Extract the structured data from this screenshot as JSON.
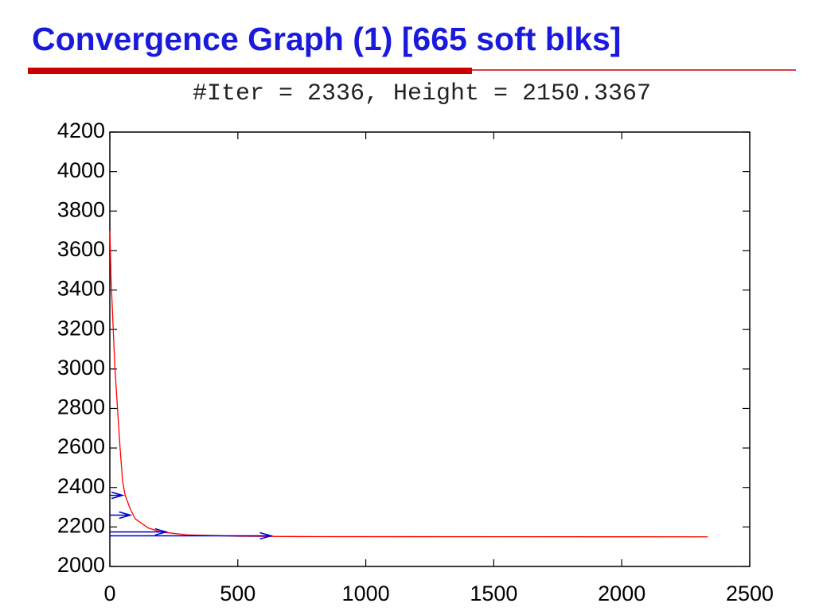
{
  "chart_data": {
    "type": "line",
    "slide_title": "Convergence Graph (1) [665 soft blks]",
    "title": "#Iter = 2336, Height = 2150.3367",
    "xlim": [
      0,
      2500
    ],
    "xticks": [
      0,
      500,
      1000,
      1500,
      2000,
      2500
    ],
    "ylim": [
      2000,
      4200
    ],
    "yticks": [
      2000,
      2200,
      2400,
      2600,
      2800,
      3000,
      3200,
      3400,
      3600,
      3800,
      4000,
      4200
    ],
    "series": [
      {
        "color": "#ff0000",
        "x": [
          0,
          5,
          10,
          20,
          30,
          40,
          50,
          60,
          80,
          100,
          150,
          200,
          300,
          500,
          800,
          2336
        ],
        "values": [
          3700,
          3450,
          3300,
          3000,
          2800,
          2600,
          2430,
          2360,
          2290,
          2240,
          2195,
          2175,
          2160,
          2153,
          2151,
          2150
        ]
      }
    ],
    "arrows": {
      "color": "#0000cc",
      "items": [
        {
          "x0": 0,
          "x1": 50,
          "y": 2360
        },
        {
          "x0": 0,
          "x1": 80,
          "y": 2260
        },
        {
          "x0": 0,
          "x1": 220,
          "y": 2175
        },
        {
          "x0": 0,
          "x1": 630,
          "y": 2155
        }
      ]
    }
  }
}
